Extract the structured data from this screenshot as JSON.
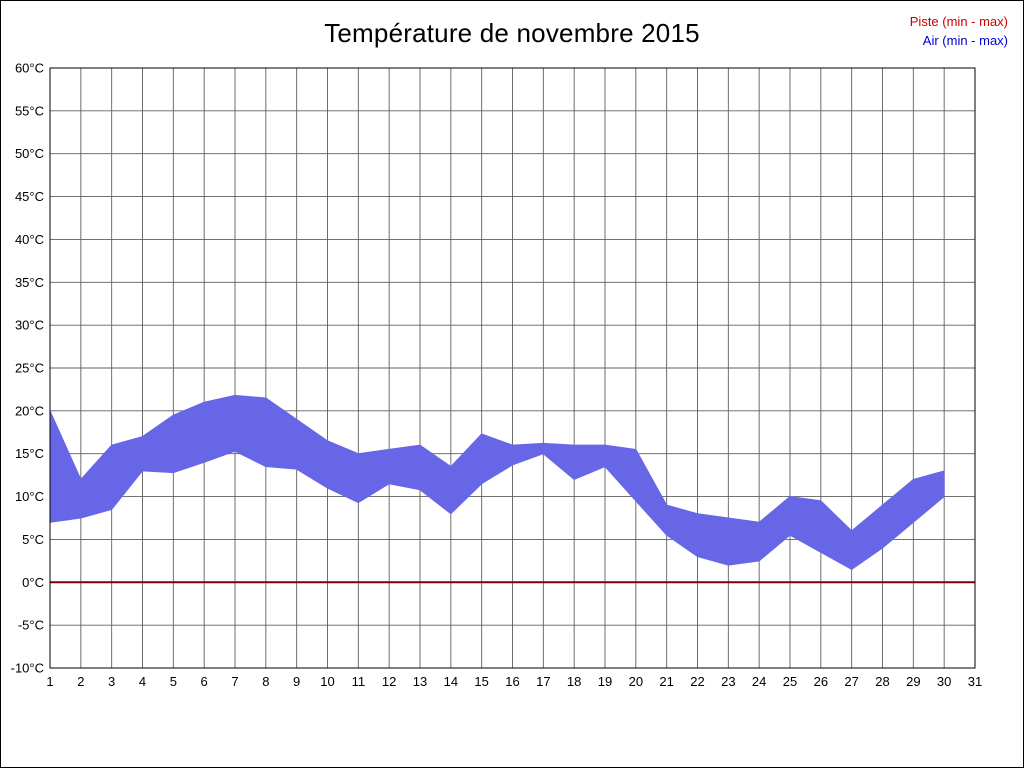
{
  "chart_data": {
    "type": "area",
    "title": "Température de novembre 2015",
    "legend": {
      "piste": "Piste (min - max)",
      "air": "Air (min - max)"
    },
    "colors": {
      "piste_legend": "#cc0000",
      "air_legend": "#0000cc",
      "band": "#6666e6",
      "piste_line": "#7d0101",
      "grid": "#5f5f5f",
      "axis": "#000000",
      "background": "#ffffff"
    },
    "ylim": [
      -10,
      60
    ],
    "y_tick_step": 5,
    "y_ticks": [
      {
        "value": 60,
        "label": "60°C"
      },
      {
        "value": 55,
        "label": "55°C"
      },
      {
        "value": 50,
        "label": "50°C"
      },
      {
        "value": 45,
        "label": "45°C"
      },
      {
        "value": 40,
        "label": "40°C"
      },
      {
        "value": 35,
        "label": "35°C"
      },
      {
        "value": 30,
        "label": "30°C"
      },
      {
        "value": 25,
        "label": "25°C"
      },
      {
        "value": 20,
        "label": "20°C"
      },
      {
        "value": 15,
        "label": "15°C"
      },
      {
        "value": 10,
        "label": "10°C"
      },
      {
        "value": 5,
        "label": "5°C"
      },
      {
        "value": 0,
        "label": "0°C"
      },
      {
        "value": -5,
        "label": "-5°C"
      },
      {
        "value": -10,
        "label": "-10°C"
      }
    ],
    "x_ticks": [
      "1",
      "2",
      "3",
      "4",
      "5",
      "6",
      "7",
      "8",
      "9",
      "10",
      "11",
      "12",
      "13",
      "14",
      "15",
      "16",
      "17",
      "18",
      "19",
      "20",
      "21",
      "22",
      "23",
      "24",
      "25",
      "26",
      "27",
      "28",
      "29",
      "30",
      "31"
    ],
    "categories": [
      1,
      2,
      3,
      4,
      5,
      6,
      7,
      8,
      9,
      10,
      11,
      12,
      13,
      14,
      15,
      16,
      17,
      18,
      19,
      20,
      21,
      22,
      23,
      24,
      25,
      26,
      27,
      28,
      29,
      30
    ],
    "series": [
      {
        "name": "Air (min - max)",
        "max": [
          20,
          12,
          16,
          17,
          19.5,
          21,
          21.8,
          21.5,
          19,
          16.5,
          15,
          15.5,
          16,
          13.5,
          17.3,
          16,
          16.2,
          16,
          16,
          15.5,
          9,
          8,
          7.5,
          7,
          10,
          9.5,
          6,
          9,
          12,
          13
        ],
        "min": [
          7,
          7.5,
          8.5,
          13,
          12.8,
          14,
          15.3,
          13.5,
          13.2,
          11,
          9.3,
          11.5,
          10.8,
          8,
          11.5,
          13.7,
          15,
          12,
          13.5,
          9.5,
          5.5,
          3,
          2,
          2.5,
          5.5,
          3.5,
          1.5,
          4,
          7,
          10
        ]
      },
      {
        "name": "Piste (min - max)",
        "max": [
          0,
          0,
          0,
          0,
          0,
          0,
          0,
          0,
          0,
          0,
          0,
          0,
          0,
          0,
          0,
          0,
          0,
          0,
          0,
          0,
          0,
          0,
          0,
          0,
          0,
          0,
          0,
          0,
          0,
          0
        ],
        "min": [
          0,
          0,
          0,
          0,
          0,
          0,
          0,
          0,
          0,
          0,
          0,
          0,
          0,
          0,
          0,
          0,
          0,
          0,
          0,
          0,
          0,
          0,
          0,
          0,
          0,
          0,
          0,
          0,
          0,
          0
        ]
      }
    ],
    "grid": true,
    "legend_position": "top-right"
  }
}
